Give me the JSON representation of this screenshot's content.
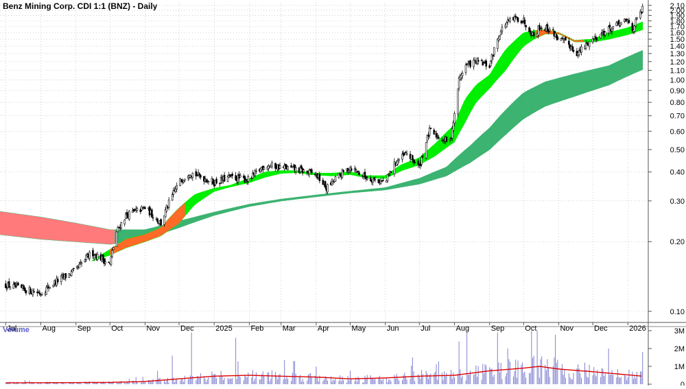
{
  "title": "Benz Mining Corp. CDI 1:1 (BNZ) - Daily",
  "volume_label": "Volume",
  "colors": {
    "candle": "#000000",
    "ema_short_up": "#00ee00",
    "ema_short_down": "#ff6a26",
    "ema_long_up": "#3cb371",
    "ema_long_down": "#ff7b7b",
    "volume_bar": "#8080d0",
    "volume_ma": "#dd0000",
    "grid": "#b0b0b0"
  },
  "chart_data": [
    {
      "type": "candlestick",
      "title": "Benz Mining Corp. CDI 1:1 (BNZ) - Daily",
      "y_scale": "log",
      "ylim": [
        0.085,
        2.2
      ],
      "y_ticks": [
        "2.10",
        "2.00",
        "1.90",
        "1.80",
        "1.70",
        "1.60",
        "1.50",
        "1.40",
        "1.30",
        "1.20",
        "1.10",
        "1.00",
        "0.90",
        "0.80",
        "0.70",
        "0.60",
        "0.50",
        "0.40",
        "0.30",
        "0.20",
        "0.10"
      ],
      "x_ticks": [
        "Jul",
        "Aug",
        "Sep",
        "Oct",
        "Nov",
        "Dec",
        "2025",
        "Feb",
        "Mar",
        "Apr",
        "May",
        "Jun",
        "Jul",
        "Aug",
        "Sep",
        "Oct",
        "Nov",
        "Dec",
        "2026"
      ],
      "close_path": [
        [
          "2024-07-01",
          0.13
        ],
        [
          "2024-07-15",
          0.125
        ],
        [
          "2024-08-01",
          0.12
        ],
        [
          "2024-08-15",
          0.135
        ],
        [
          "2024-09-01",
          0.15
        ],
        [
          "2024-09-15",
          0.18
        ],
        [
          "2024-10-01",
          0.16
        ],
        [
          "2024-10-07",
          0.22
        ],
        [
          "2024-10-15",
          0.26
        ],
        [
          "2024-11-01",
          0.28
        ],
        [
          "2024-11-15",
          0.24
        ],
        [
          "2024-12-01",
          0.36
        ],
        [
          "2024-12-10",
          0.4
        ],
        [
          "2025-01-01",
          0.36
        ],
        [
          "2025-01-15",
          0.38
        ],
        [
          "2025-02-01",
          0.37
        ],
        [
          "2025-02-15",
          0.43
        ],
        [
          "2025-03-01",
          0.42
        ],
        [
          "2025-03-15",
          0.41
        ],
        [
          "2025-04-01",
          0.39
        ],
        [
          "2025-04-10",
          0.34
        ],
        [
          "2025-04-20",
          0.38
        ],
        [
          "2025-05-01",
          0.42
        ],
        [
          "2025-05-15",
          0.38
        ],
        [
          "2025-06-01",
          0.36
        ],
        [
          "2025-06-10",
          0.44
        ],
        [
          "2025-06-20",
          0.48
        ],
        [
          "2025-07-01",
          0.42
        ],
        [
          "2025-07-10",
          0.6
        ],
        [
          "2025-07-20",
          0.56
        ],
        [
          "2025-07-28",
          0.54
        ],
        [
          "2025-08-01",
          0.7
        ],
        [
          "2025-08-05",
          1.0
        ],
        [
          "2025-08-10",
          1.15
        ],
        [
          "2025-08-20",
          1.2
        ],
        [
          "2025-09-01",
          1.15
        ],
        [
          "2025-09-10",
          1.6
        ],
        [
          "2025-09-15",
          1.75
        ],
        [
          "2025-09-25",
          1.85
        ],
        [
          "2025-10-01",
          1.8
        ],
        [
          "2025-10-10",
          1.55
        ],
        [
          "2025-10-15",
          1.7
        ],
        [
          "2025-10-25",
          1.65
        ],
        [
          "2025-11-01",
          1.5
        ],
        [
          "2025-11-10",
          1.42
        ],
        [
          "2025-11-18",
          1.3
        ],
        [
          "2025-11-25",
          1.42
        ],
        [
          "2025-12-01",
          1.5
        ],
        [
          "2025-12-10",
          1.6
        ],
        [
          "2025-12-20",
          1.7
        ],
        [
          "2026-01-01",
          1.8
        ],
        [
          "2026-01-05",
          1.65
        ],
        [
          "2026-01-10",
          1.85
        ],
        [
          "2026-01-14",
          2.02
        ]
      ],
      "ema_short_band": [
        [
          "2024-09-15",
          0.165,
          0.165
        ],
        [
          "2024-10-01",
          0.185,
          0.175
        ],
        [
          "2024-10-15",
          0.205,
          0.188
        ],
        [
          "2024-11-01",
          0.215,
          0.2
        ],
        [
          "2024-11-15",
          0.23,
          0.212
        ],
        [
          "2024-12-01",
          0.28,
          0.24
        ],
        [
          "2024-12-15",
          0.32,
          0.29
        ],
        [
          "2025-01-01",
          0.34,
          0.33
        ],
        [
          "2025-01-15",
          0.35,
          0.345
        ],
        [
          "2025-02-01",
          0.375,
          0.36
        ],
        [
          "2025-02-15",
          0.4,
          0.38
        ],
        [
          "2025-03-01",
          0.405,
          0.395
        ],
        [
          "2025-03-15",
          0.405,
          0.398
        ],
        [
          "2025-04-01",
          0.395,
          0.388
        ],
        [
          "2025-04-15",
          0.395,
          0.385
        ],
        [
          "2025-05-01",
          0.4,
          0.39
        ],
        [
          "2025-05-15",
          0.385,
          0.378
        ],
        [
          "2025-06-01",
          0.385,
          0.375
        ],
        [
          "2025-06-15",
          0.43,
          0.405
        ],
        [
          "2025-07-01",
          0.46,
          0.43
        ],
        [
          "2025-07-15",
          0.53,
          0.47
        ],
        [
          "2025-08-01",
          0.64,
          0.54
        ],
        [
          "2025-08-10",
          0.82,
          0.65
        ],
        [
          "2025-08-20",
          0.95,
          0.8
        ],
        [
          "2025-09-01",
          1.05,
          0.92
        ],
        [
          "2025-09-15",
          1.35,
          1.1
        ],
        [
          "2025-10-01",
          1.6,
          1.4
        ],
        [
          "2025-10-10",
          1.63,
          1.5
        ],
        [
          "2025-10-20",
          1.65,
          1.58
        ],
        [
          "2025-11-01",
          1.6,
          1.58
        ],
        [
          "2025-11-15",
          1.48,
          1.46
        ],
        [
          "2025-12-01",
          1.5,
          1.46
        ],
        [
          "2025-12-15",
          1.6,
          1.5
        ],
        [
          "2026-01-01",
          1.68,
          1.57
        ],
        [
          "2026-01-14",
          1.78,
          1.65
        ]
      ],
      "ema_long_band": [
        [
          "2024-06-25",
          0.27,
          0.215
        ],
        [
          "2024-08-01",
          0.255,
          0.205
        ],
        [
          "2024-09-01",
          0.24,
          0.2
        ],
        [
          "2024-10-01",
          0.225,
          0.195
        ],
        [
          "2024-11-01",
          0.225,
          0.205
        ],
        [
          "2024-12-01",
          0.245,
          0.23
        ],
        [
          "2025-01-01",
          0.268,
          0.26
        ],
        [
          "2025-02-01",
          0.29,
          0.284
        ],
        [
          "2025-03-01",
          0.305,
          0.3
        ],
        [
          "2025-04-01",
          0.318,
          0.313
        ],
        [
          "2025-05-01",
          0.33,
          0.325
        ],
        [
          "2025-06-01",
          0.342,
          0.335
        ],
        [
          "2025-07-01",
          0.375,
          0.355
        ],
        [
          "2025-07-25",
          0.42,
          0.385
        ],
        [
          "2025-08-15",
          0.52,
          0.44
        ],
        [
          "2025-09-01",
          0.62,
          0.5
        ],
        [
          "2025-09-15",
          0.74,
          0.58
        ],
        [
          "2025-10-01",
          0.88,
          0.68
        ],
        [
          "2025-10-20",
          0.98,
          0.77
        ],
        [
          "2025-11-15",
          1.06,
          0.85
        ],
        [
          "2025-12-15",
          1.15,
          0.95
        ],
        [
          "2026-01-14",
          1.34,
          1.11
        ]
      ]
    },
    {
      "type": "bar",
      "title": "Volume",
      "ylim": [
        0,
        3000000
      ],
      "y_ticks": [
        "3M",
        "2M",
        "1M",
        "0"
      ],
      "volume_ma": [
        [
          "2024-07-01",
          80000
        ],
        [
          "2024-09-01",
          90000
        ],
        [
          "2024-10-01",
          100000
        ],
        [
          "2024-11-01",
          150000
        ],
        [
          "2024-12-01",
          300000
        ],
        [
          "2025-01-01",
          450000
        ],
        [
          "2025-02-01",
          500000
        ],
        [
          "2025-03-01",
          450000
        ],
        [
          "2025-04-01",
          400000
        ],
        [
          "2025-05-01",
          300000
        ],
        [
          "2025-06-01",
          350000
        ],
        [
          "2025-07-01",
          450000
        ],
        [
          "2025-08-01",
          500000
        ],
        [
          "2025-09-01",
          750000
        ],
        [
          "2025-10-01",
          900000
        ],
        [
          "2025-10-15",
          1000000
        ],
        [
          "2025-11-01",
          850000
        ],
        [
          "2025-12-01",
          700000
        ],
        [
          "2026-01-14",
          450000
        ]
      ],
      "volume_spikes": [
        [
          "2024-12-12",
          2900000
        ],
        [
          "2024-11-25",
          1600000
        ],
        [
          "2025-01-20",
          2600000
        ],
        [
          "2025-04-06",
          2800000
        ],
        [
          "2025-04-13",
          2000000
        ],
        [
          "2025-08-05",
          2400000
        ],
        [
          "2025-08-12",
          2900000
        ],
        [
          "2025-09-08",
          2900000
        ],
        [
          "2025-09-17",
          2000000
        ],
        [
          "2025-10-05",
          1600000
        ],
        [
          "2025-12-15",
          2000000
        ],
        [
          "2026-01-14",
          1800000
        ],
        [
          "2025-06-25",
          1500000
        ],
        [
          "2025-03-12",
          1300000
        ]
      ]
    }
  ]
}
